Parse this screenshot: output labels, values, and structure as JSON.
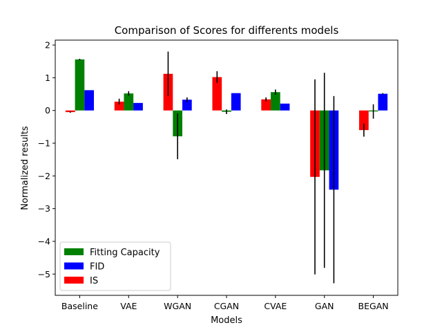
{
  "chart_data": {
    "type": "bar",
    "title": "Comparison of Scores for differents models",
    "xlabel": "Models",
    "ylabel": "Normalized results",
    "categories": [
      "Baseline",
      "VAE",
      "WGAN",
      "CGAN",
      "CVAE",
      "GAN",
      "BEGAN"
    ],
    "ylim": [
      -5.65,
      2.15
    ],
    "yticks": [
      2,
      1,
      0,
      -1,
      -2,
      -3,
      -4,
      -5
    ],
    "ytick_labels": [
      "2",
      "1",
      "0",
      "−1",
      "−2",
      "−3",
      "−4",
      "−5"
    ],
    "legend_position": "lower-left",
    "series": [
      {
        "name": "IS",
        "color": "#ff0000",
        "values": [
          -0.05,
          0.27,
          1.12,
          1.02,
          0.34,
          -2.03,
          -0.6
        ],
        "errors": [
          0.02,
          0.09,
          0.68,
          0.18,
          0.06,
          2.98,
          0.2
        ]
      },
      {
        "name": "Fitting Capacity",
        "color": "#008000",
        "values": [
          1.56,
          0.52,
          -0.79,
          -0.04,
          0.56,
          -1.83,
          -0.03
        ],
        "errors": [
          0.02,
          0.07,
          0.7,
          0.07,
          0.08,
          2.98,
          0.22
        ]
      },
      {
        "name": "FID",
        "color": "#0000ff",
        "values": [
          0.62,
          0.23,
          0.33,
          0.53,
          0.21,
          -2.42,
          0.51
        ],
        "errors": [
          0.0,
          0.0,
          0.07,
          0.0,
          0.0,
          2.86,
          0.02
        ]
      }
    ],
    "legend_order": [
      "Fitting Capacity",
      "FID",
      "IS"
    ]
  }
}
